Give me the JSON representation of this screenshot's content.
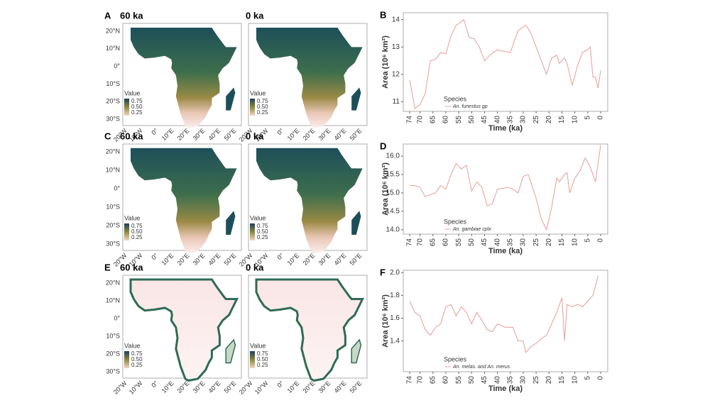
{
  "maps": {
    "rows": [
      {
        "letter": "A",
        "left_title": "60 ka",
        "right_title": "0 ka"
      },
      {
        "letter": "C",
        "left_title": "60 ka",
        "right_title": "0 ka"
      },
      {
        "letter": "E",
        "left_title": "60 ka",
        "right_title": "0 ka"
      }
    ],
    "lat_ticks": [
      "20°N",
      "10°N",
      "0°",
      "10°S",
      "20°S",
      "30°S"
    ],
    "lon_ticks": [
      "20°W",
      "10°W",
      "0°",
      "10°E",
      "20°E",
      "30°E",
      "40°E",
      "50°E"
    ],
    "legend_title": "Value",
    "legend_ticks": [
      "0.75",
      "0.50",
      "0.25"
    ]
  },
  "chart_data": [
    {
      "type": "line",
      "panel": "B",
      "x_label": "Time (ka)",
      "y_label": "Area (10⁶ km²)",
      "legend_title": "Species",
      "x": [
        74,
        72,
        70,
        68,
        66,
        64,
        62,
        60,
        58,
        56,
        55,
        53,
        51,
        49,
        47,
        45,
        43,
        40,
        38,
        35,
        32,
        29,
        27,
        25,
        23,
        21,
        19,
        17,
        16,
        14,
        13,
        11,
        9,
        7,
        5,
        4,
        3,
        2,
        1,
        0
      ],
      "series": [
        {
          "name": "An. funestus gp",
          "color": "#e8a5a0",
          "values": [
            11.8,
            10.75,
            10.9,
            11.3,
            12.5,
            12.55,
            12.8,
            12.75,
            13.4,
            13.8,
            13.85,
            14.0,
            13.35,
            13.3,
            13.0,
            12.5,
            12.7,
            12.9,
            12.85,
            12.8,
            13.6,
            13.8,
            13.5,
            13.0,
            12.5,
            12.0,
            12.6,
            12.7,
            12.4,
            12.6,
            12.4,
            11.6,
            12.3,
            12.8,
            12.9,
            13.0,
            11.9,
            11.9,
            11.5,
            12.15
          ]
        }
      ],
      "xlim": [
        76.5,
        -2.75
      ],
      "xticks": [
        74,
        70,
        65,
        60,
        55,
        50,
        45,
        40,
        35,
        30,
        25,
        20,
        15,
        10,
        5,
        0
      ],
      "ylim": [
        10.65,
        14.25
      ],
      "yticks": [
        11,
        12,
        13,
        14
      ]
    },
    {
      "type": "line",
      "panel": "D",
      "x_label": "Time (ka)",
      "y_label": "Area (10⁶ km²)",
      "legend_title": "Species",
      "x": [
        74,
        72,
        70,
        68,
        66,
        64,
        62,
        60,
        58,
        56,
        54,
        52,
        50,
        48,
        46,
        44,
        42,
        40,
        36,
        34,
        32,
        30,
        28,
        25,
        23,
        21,
        19,
        17,
        16,
        14,
        13,
        12,
        10,
        8,
        6,
        4,
        2,
        0
      ],
      "series": [
        {
          "name": "An. gambiae cplx",
          "color": "#e8a5a0",
          "values": [
            15.2,
            15.2,
            15.15,
            14.9,
            14.95,
            15.0,
            15.2,
            15.1,
            15.5,
            15.8,
            15.65,
            15.75,
            15.05,
            15.3,
            15.15,
            14.65,
            14.7,
            15.1,
            15.15,
            15.1,
            15.0,
            15.45,
            15.5,
            14.85,
            14.3,
            14.0,
            14.6,
            15.4,
            15.3,
            15.5,
            15.55,
            15.0,
            15.4,
            15.6,
            15.95,
            15.7,
            15.3,
            16.3
          ]
        }
      ],
      "xlim": [
        76.5,
        -2.75
      ],
      "xticks": [
        74,
        70,
        65,
        60,
        55,
        50,
        45,
        40,
        35,
        30,
        25,
        20,
        15,
        10,
        5,
        0
      ],
      "ylim": [
        13.88,
        16.33
      ],
      "yticks": [
        {
          "value": 14,
          "label": "14.0"
        },
        14.5,
        {
          "value": 15,
          "label": "15.0"
        },
        15.5,
        {
          "value": 16,
          "label": "16.0"
        }
      ]
    },
    {
      "type": "line",
      "panel": "F",
      "x_label": "Time (ka)",
      "y_label": "Area (10⁶ km²)",
      "legend_title": "Species",
      "x": [
        74,
        72,
        70,
        68,
        66,
        64,
        62,
        60,
        58,
        56,
        54,
        52,
        50,
        48,
        46,
        44,
        42,
        40,
        37,
        34,
        32,
        30,
        29,
        27,
        25,
        23,
        21,
        19,
        17,
        15,
        14,
        13,
        11,
        9,
        7,
        5,
        3,
        1
      ],
      "series": [
        {
          "name": "An. melas. and An. merus",
          "color": "#e8a5a0",
          "values": [
            1.75,
            1.65,
            1.62,
            1.5,
            1.45,
            1.52,
            1.55,
            1.7,
            1.72,
            1.62,
            1.7,
            1.65,
            1.55,
            1.65,
            1.58,
            1.5,
            1.48,
            1.55,
            1.52,
            1.52,
            1.4,
            1.4,
            1.3,
            1.35,
            1.38,
            1.42,
            1.45,
            1.55,
            1.65,
            1.78,
            1.4,
            1.72,
            1.7,
            1.72,
            1.7,
            1.75,
            1.8,
            1.97
          ]
        }
      ],
      "xlim": [
        76.5,
        -2.75
      ],
      "xticks": [
        74,
        70,
        65,
        60,
        55,
        50,
        45,
        40,
        35,
        30,
        25,
        20,
        15,
        10,
        5,
        0
      ],
      "ylim": [
        1.13,
        2.02
      ],
      "yticks": [
        1.4,
        1.6,
        1.8,
        {
          "value": 2,
          "label": "2.0"
        }
      ]
    }
  ]
}
